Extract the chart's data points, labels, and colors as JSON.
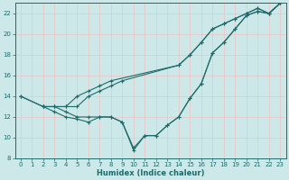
{
  "xlabel": "Humidex (Indice chaleur)",
  "bg_color": "#cce8e8",
  "grid_color": "#b8dcdc",
  "line_color": "#1e6b6b",
  "xlim": [
    -0.5,
    23.5
  ],
  "ylim": [
    8,
    23
  ],
  "yticks": [
    8,
    10,
    12,
    14,
    16,
    18,
    20,
    22
  ],
  "xticks": [
    0,
    1,
    2,
    3,
    4,
    5,
    6,
    7,
    8,
    9,
    10,
    11,
    12,
    13,
    14,
    15,
    16,
    17,
    18,
    19,
    20,
    21,
    22,
    23
  ],
  "lines": [
    {
      "x": [
        0,
        2,
        3,
        4,
        5,
        6,
        7,
        8,
        14,
        15,
        16,
        17,
        18,
        19,
        20,
        21,
        22,
        23
      ],
      "y": [
        14,
        13,
        13,
        13,
        14,
        14.5,
        15,
        15.5,
        17,
        18,
        19.2,
        20.5,
        21,
        21.5,
        22,
        22.5,
        22,
        23
      ]
    },
    {
      "x": [
        0,
        2,
        3,
        4,
        5,
        6,
        7,
        8,
        9,
        10,
        11,
        12,
        13,
        14,
        15,
        16,
        17,
        18,
        19,
        20,
        21,
        22,
        23
      ],
      "y": [
        14,
        13,
        13,
        12.5,
        12,
        12,
        12,
        12,
        11.5,
        9,
        10.2,
        10.2,
        11.2,
        12,
        13.8,
        15.2,
        18.2,
        19.2,
        20.5,
        21.8,
        22.2,
        22,
        23
      ]
    },
    {
      "x": [
        2,
        3,
        4,
        5,
        6,
        7,
        8,
        9,
        10,
        11,
        12,
        13,
        14,
        15,
        16,
        17,
        18,
        19,
        20,
        21,
        22,
        23
      ],
      "y": [
        13,
        12.5,
        12,
        11.8,
        11.5,
        12,
        12,
        11.5,
        8.8,
        10.2,
        10.2,
        11.2,
        12,
        13.8,
        15.2,
        18.2,
        19.2,
        20.5,
        21.8,
        22.2,
        22,
        23
      ]
    },
    {
      "x": [
        2,
        3,
        4,
        5,
        6,
        7,
        8,
        9,
        14,
        15,
        16,
        17,
        18,
        19,
        20,
        21,
        22,
        23
      ],
      "y": [
        13,
        13,
        13,
        13,
        14,
        14.5,
        15,
        15.5,
        17,
        18,
        19.2,
        20.5,
        21,
        21.5,
        22,
        22.5,
        22,
        23
      ]
    }
  ]
}
